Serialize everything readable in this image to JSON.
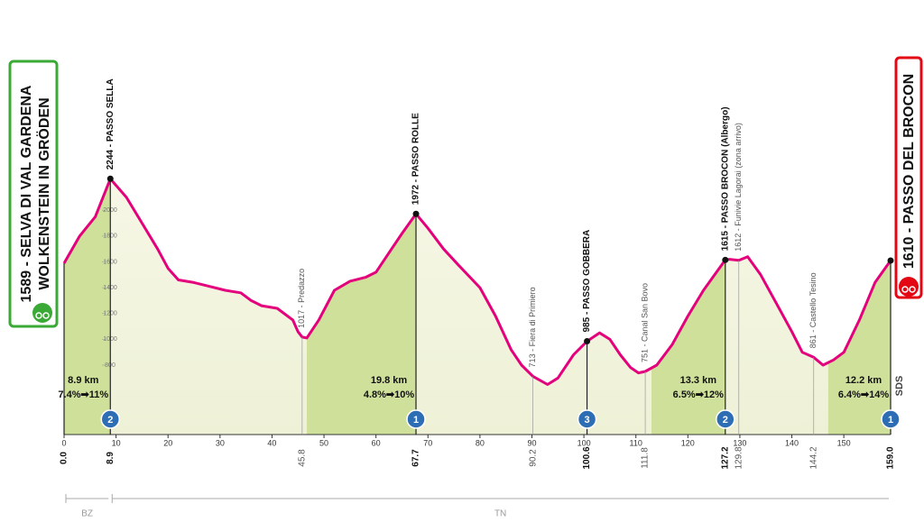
{
  "chart_data": {
    "type": "area",
    "color": "#e4007c",
    "xlim": [
      0,
      159
    ],
    "ylim": [
      262,
      3210
    ],
    "xticks": [
      0,
      10,
      20,
      30,
      40,
      50,
      60,
      70,
      80,
      90,
      100,
      110,
      120,
      130,
      140,
      150
    ],
    "yticks": [
      800,
      1000,
      1200,
      1400,
      1600,
      1800,
      2000
    ],
    "x": [
      0,
      3,
      6,
      8.9,
      12,
      15,
      18,
      20,
      22,
      25,
      28,
      31,
      34,
      36,
      38,
      41,
      44,
      45,
      45.8,
      46.7,
      49,
      52,
      55,
      58,
      60,
      63,
      65,
      67.7,
      70,
      73,
      76,
      80,
      83,
      86,
      88,
      90.2,
      93,
      95,
      98,
      100.6,
      103,
      105,
      107,
      109,
      110.5,
      111.8,
      114,
      117,
      120,
      123,
      127.2,
      128,
      129.8,
      131.5,
      134,
      137,
      140,
      142,
      144.2,
      146,
      148,
      150,
      153,
      156,
      159
    ],
    "values": [
      1589,
      1800,
      1950,
      2244,
      2100,
      1900,
      1700,
      1550,
      1460,
      1440,
      1410,
      1380,
      1360,
      1300,
      1260,
      1240,
      1150,
      1060,
      1017,
      1010,
      1150,
      1380,
      1450,
      1480,
      1520,
      1700,
      1820,
      1972,
      1860,
      1700,
      1570,
      1400,
      1180,
      920,
      800,
      713,
      650,
      700,
      880,
      985,
      1050,
      1000,
      880,
      780,
      740,
      751,
      800,
      960,
      1180,
      1380,
      1615,
      1620,
      1612,
      1640,
      1500,
      1280,
      1060,
      900,
      861,
      800,
      840,
      900,
      1150,
      1440,
      1610
    ],
    "start": {
      "lines": [
        "1589 - SELVA DI VAL GARDENA",
        "WOLKENSTEIN IN GRÖDEN"
      ]
    },
    "finish": {
      "text": "1610 - PASSO DEL BROCON"
    },
    "logo": "SDS",
    "points": [
      {
        "km": {
          "value": 0,
          "label": "0.0"
        },
        "elevation": 1589,
        "major": true
      },
      {
        "km": 8.9,
        "elevation": 2244,
        "name": "2244 - PASSO SELLA",
        "major": true,
        "cat": 2
      },
      {
        "km": 45.8,
        "elevation": 1017,
        "name": "1017 - Predazzo",
        "major": false
      },
      {
        "km": 67.7,
        "elevation": 1972,
        "name": "1972 - PASSO ROLLE",
        "major": true,
        "cat": 1
      },
      {
        "km": 90.2,
        "elevation": 713,
        "name": "713 - Fiera di Primiero",
        "major": false
      },
      {
        "km": 100.6,
        "elevation": 985,
        "name": "985 - PASSO GOBBERA",
        "major": true,
        "cat": 3
      },
      {
        "km": 111.8,
        "elevation": 751,
        "name": "751 - Canal San Bovo",
        "major": false
      },
      {
        "km": 127.2,
        "elevation": 1615,
        "name": "1615 - PASSO BROCON (Albergo)",
        "major": true,
        "cat": 2
      },
      {
        "km": 129.8,
        "elevation": 1612,
        "name": "1612 - Funivie Lagorai (zona arrivo)",
        "major": false
      },
      {
        "km": 144.2,
        "elevation": 861,
        "name": "861 - Castello Tesino",
        "major": false
      },
      {
        "km": {
          "value": 159,
          "label": "159.0"
        },
        "elevation": 1610,
        "major": true,
        "cat": 1
      }
    ],
    "climbs": [
      {
        "from": 0,
        "to": 8.9,
        "length": "8.9 km",
        "gradient": "7.4%➡11%"
      },
      {
        "from": 46.7,
        "to": 67.7,
        "length": "19.8 km",
        "gradient": "4.8%➡10%"
      },
      {
        "from": 113,
        "to": 127.2,
        "length": "13.3 km",
        "gradient": "6.5%➡12%"
      },
      {
        "from": 147,
        "to": 159,
        "length": "12.2 km",
        "gradient": "6.4%➡14%"
      }
    ],
    "regions": [
      {
        "name": "BZ",
        "from": 0,
        "to": 8.9
      },
      {
        "name": "TN",
        "from": 8.9,
        "to": 159
      }
    ]
  }
}
